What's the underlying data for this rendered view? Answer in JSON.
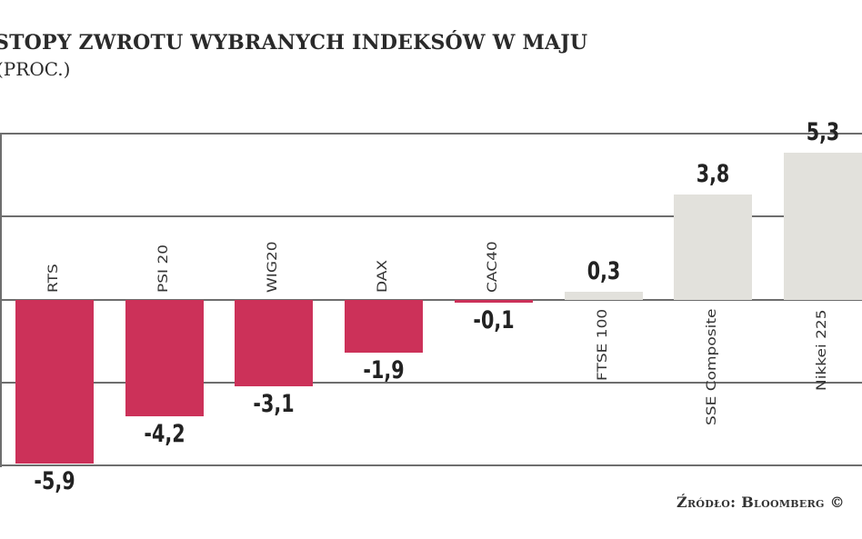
{
  "header": {
    "title": "STOPY ZWROTU WYBRANYCH INDEKSÓW W MAJU",
    "subtitle": "(PROC.)"
  },
  "footer": {
    "source": "Źródło: Bloomberg ©"
  },
  "colors": {
    "negative": "#cc3159",
    "positive": "#e2e1dc",
    "gridline": "#6e6e6e"
  },
  "chart_data": {
    "type": "bar",
    "title": "STOPY ZWROTU WYBRANYCH INDEKSÓW W MAJU",
    "subtitle": "(PROC.)",
    "xlabel": "",
    "ylabel": "proc.",
    "categories": [
      "RTS",
      "PSI 20",
      "WIG20",
      "DAX",
      "CAC40",
      "FTSE 100",
      "SSE Composite",
      "Nikkei 225"
    ],
    "values": [
      -5.9,
      -4.2,
      -3.1,
      -1.9,
      -0.1,
      0.3,
      3.8,
      5.3
    ],
    "value_labels": [
      "-5,9",
      "-4,2",
      "-3,1",
      "-1,9",
      "-0,1",
      "0,3",
      "3,8",
      "5,3"
    ],
    "ylim": [
      -6,
      6
    ],
    "gridlines": [
      6,
      3,
      0,
      -3,
      -6
    ],
    "grid": true,
    "legend": "none",
    "source": "Źródło: Bloomberg"
  }
}
